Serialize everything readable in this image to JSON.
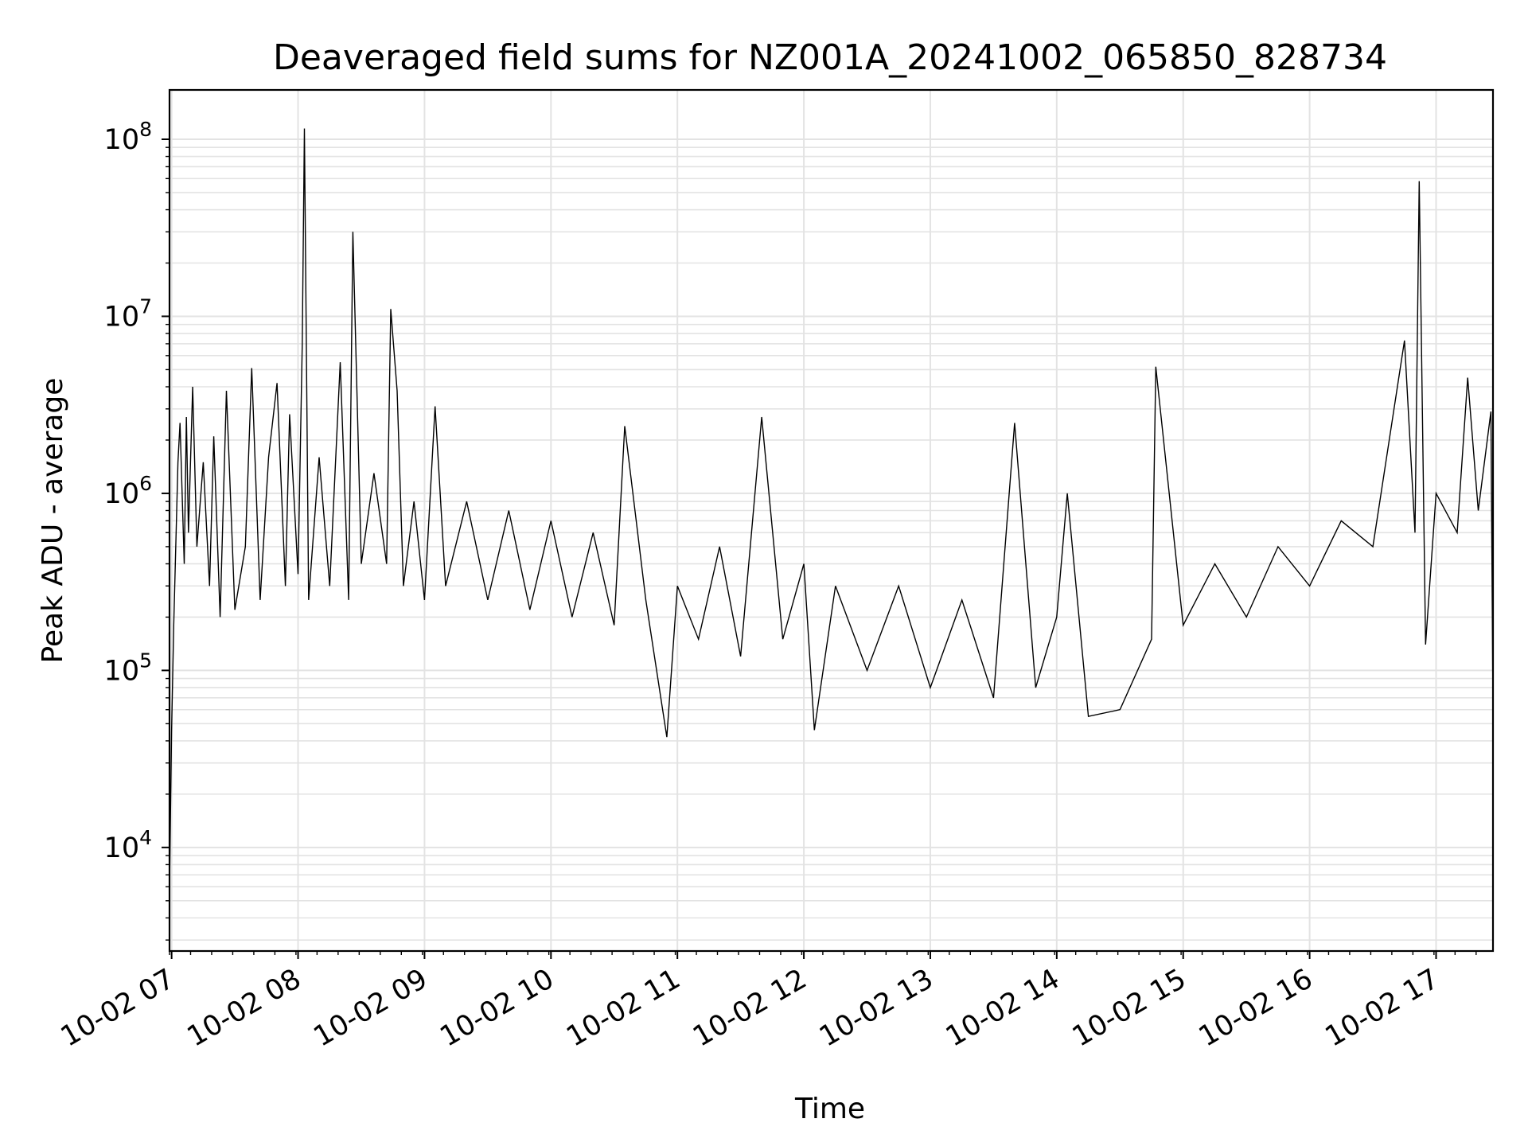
{
  "chart_data": {
    "type": "line",
    "title": "Deaveraged field sums for NZ001A_20241002_065850_828734",
    "xlabel": "Time",
    "ylabel": "Peak ADU - average",
    "x_ticks": [
      "10-02 07",
      "10-02 08",
      "10-02 09",
      "10-02 10",
      "10-02 11",
      "10-02 12",
      "10-02 13",
      "10-02 14",
      "10-02 15",
      "10-02 16",
      "10-02 17"
    ],
    "y_ticks": [
      {
        "base": "10",
        "exp": "4",
        "value": 10000
      },
      {
        "base": "10",
        "exp": "5",
        "value": 100000
      },
      {
        "base": "10",
        "exp": "6",
        "value": 1000000
      },
      {
        "base": "10",
        "exp": "7",
        "value": 10000000
      },
      {
        "base": "10",
        "exp": "8",
        "value": 100000000
      }
    ],
    "xlim": [
      "2024-10-02 06:59",
      "2024-10-02 17:27"
    ],
    "ylim": [
      2600,
      190000000
    ],
    "y_scale": "log",
    "grid": true,
    "line_color": "#000000",
    "grid_color": "#e3e3e3",
    "series": [
      {
        "values": [
          [
            "2024-10-02 06:59",
            6000
          ],
          [
            "2024-10-02 07:00",
            45000
          ],
          [
            "2024-10-02 07:01",
            180000
          ],
          [
            "2024-10-02 07:03",
            1500000
          ],
          [
            "2024-10-02 07:04",
            2500000
          ],
          [
            "2024-10-02 07:06",
            400000
          ],
          [
            "2024-10-02 07:07",
            2700000
          ],
          [
            "2024-10-02 07:08",
            600000
          ],
          [
            "2024-10-02 07:10",
            4000000
          ],
          [
            "2024-10-02 07:12",
            500000
          ],
          [
            "2024-10-02 07:15",
            1500000
          ],
          [
            "2024-10-02 07:18",
            300000
          ],
          [
            "2024-10-02 07:20",
            2100000
          ],
          [
            "2024-10-02 07:23",
            200000
          ],
          [
            "2024-10-02 07:26",
            3800000
          ],
          [
            "2024-10-02 07:30",
            220000
          ],
          [
            "2024-10-02 07:35",
            500000
          ],
          [
            "2024-10-02 07:38",
            5100000
          ],
          [
            "2024-10-02 07:42",
            250000
          ],
          [
            "2024-10-02 07:46",
            1600000
          ],
          [
            "2024-10-02 07:50",
            4200000
          ],
          [
            "2024-10-02 07:54",
            300000
          ],
          [
            "2024-10-02 07:56",
            2800000
          ],
          [
            "2024-10-02 08:00",
            350000
          ],
          [
            "2024-10-02 08:02",
            7000000
          ],
          [
            "2024-10-02 08:03",
            115000000
          ],
          [
            "2024-10-02 08:05",
            250000
          ],
          [
            "2024-10-02 08:10",
            1600000
          ],
          [
            "2024-10-02 08:15",
            300000
          ],
          [
            "2024-10-02 08:20",
            5500000
          ],
          [
            "2024-10-02 08:24",
            250000
          ],
          [
            "2024-10-02 08:26",
            30000000
          ],
          [
            "2024-10-02 08:30",
            400000
          ],
          [
            "2024-10-02 08:36",
            1300000
          ],
          [
            "2024-10-02 08:42",
            400000
          ],
          [
            "2024-10-02 08:44",
            11000000
          ],
          [
            "2024-10-02 08:47",
            3800000
          ],
          [
            "2024-10-02 08:50",
            300000
          ],
          [
            "2024-10-02 08:55",
            900000
          ],
          [
            "2024-10-02 09:00",
            250000
          ],
          [
            "2024-10-02 09:05",
            3100000
          ],
          [
            "2024-10-02 09:10",
            300000
          ],
          [
            "2024-10-02 09:20",
            900000
          ],
          [
            "2024-10-02 09:30",
            250000
          ],
          [
            "2024-10-02 09:40",
            800000
          ],
          [
            "2024-10-02 09:50",
            220000
          ],
          [
            "2024-10-02 10:00",
            700000
          ],
          [
            "2024-10-02 10:10",
            200000
          ],
          [
            "2024-10-02 10:20",
            600000
          ],
          [
            "2024-10-02 10:30",
            180000
          ],
          [
            "2024-10-02 10:35",
            2400000
          ],
          [
            "2024-10-02 10:45",
            250000
          ],
          [
            "2024-10-02 10:55",
            42000
          ],
          [
            "2024-10-02 11:00",
            300000
          ],
          [
            "2024-10-02 11:10",
            150000
          ],
          [
            "2024-10-02 11:20",
            500000
          ],
          [
            "2024-10-02 11:30",
            120000
          ],
          [
            "2024-10-02 11:40",
            2700000
          ],
          [
            "2024-10-02 11:50",
            150000
          ],
          [
            "2024-10-02 12:00",
            400000
          ],
          [
            "2024-10-02 12:05",
            46000
          ],
          [
            "2024-10-02 12:15",
            300000
          ],
          [
            "2024-10-02 12:30",
            100000
          ],
          [
            "2024-10-02 12:45",
            300000
          ],
          [
            "2024-10-02 13:00",
            80000
          ],
          [
            "2024-10-02 13:15",
            250000
          ],
          [
            "2024-10-02 13:30",
            70000
          ],
          [
            "2024-10-02 13:40",
            2500000
          ],
          [
            "2024-10-02 13:50",
            80000
          ],
          [
            "2024-10-02 14:00",
            200000
          ],
          [
            "2024-10-02 14:05",
            1000000
          ],
          [
            "2024-10-02 14:15",
            55000
          ],
          [
            "2024-10-02 14:30",
            60000
          ],
          [
            "2024-10-02 14:45",
            150000
          ],
          [
            "2024-10-02 14:47",
            5200000
          ],
          [
            "2024-10-02 15:00",
            180000
          ],
          [
            "2024-10-02 15:15",
            400000
          ],
          [
            "2024-10-02 15:30",
            200000
          ],
          [
            "2024-10-02 15:45",
            500000
          ],
          [
            "2024-10-02 16:00",
            300000
          ],
          [
            "2024-10-02 16:15",
            700000
          ],
          [
            "2024-10-02 16:30",
            500000
          ],
          [
            "2024-10-02 16:45",
            7300000
          ],
          [
            "2024-10-02 16:50",
            600000
          ],
          [
            "2024-10-02 16:52",
            58000000
          ],
          [
            "2024-10-02 16:55",
            140000
          ],
          [
            "2024-10-02 17:00",
            1000000
          ],
          [
            "2024-10-02 17:10",
            600000
          ],
          [
            "2024-10-02 17:15",
            4500000
          ],
          [
            "2024-10-02 17:20",
            800000
          ],
          [
            "2024-10-02 17:26",
            2900000
          ],
          [
            "2024-10-02 17:27",
            60000
          ]
        ]
      }
    ]
  }
}
